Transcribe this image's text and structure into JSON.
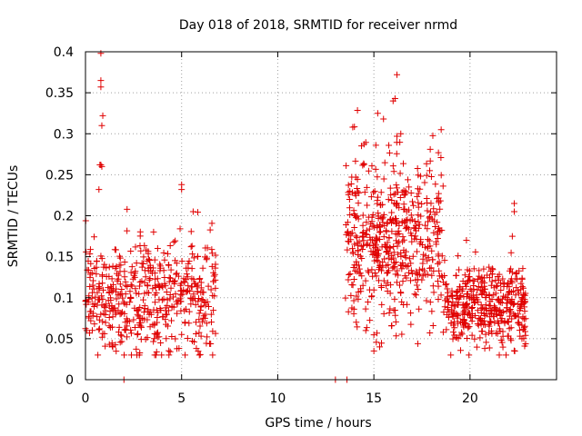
{
  "chart_data": {
    "type": "scatter",
    "title": "Day 018 of 2018, SRMTID for receiver nrmd",
    "xlabel": "GPS time / hours",
    "ylabel": "SRMTID / TECUs",
    "xlim": [
      0,
      24.5
    ],
    "ylim": [
      0,
      0.4
    ],
    "xticks": [
      0,
      5,
      10,
      15,
      20
    ],
    "yticks": [
      0,
      0.05,
      0.1,
      0.15,
      0.2,
      0.25,
      0.3,
      0.35,
      0.4
    ],
    "xtick_labels": [
      "0",
      "5",
      "10",
      "15",
      "20"
    ],
    "ytick_labels": [
      "0",
      "0.05",
      "0.1",
      "0.15",
      "0.2",
      "0.25",
      "0.3",
      "0.35",
      "0.4"
    ],
    "grid": true,
    "marker": "+",
    "color": "#e00000",
    "series": [
      {
        "name": "SRMTID",
        "clusters": [
          {
            "x_range": [
              0.0,
              6.8
            ],
            "y_mean": 0.1,
            "y_spread": 0.035,
            "count": 520
          },
          {
            "x_range": [
              13.5,
              18.6
            ],
            "y_mean": 0.17,
            "y_spread": 0.05,
            "count": 520
          },
          {
            "x_range": [
              18.6,
              22.9
            ],
            "y_mean": 0.09,
            "y_spread": 0.025,
            "count": 420
          }
        ],
        "points": [
          {
            "x": 0.8,
            "y": 0.398
          },
          {
            "x": 0.8,
            "y": 0.365
          },
          {
            "x": 0.8,
            "y": 0.357
          },
          {
            "x": 0.9,
            "y": 0.322
          },
          {
            "x": 0.85,
            "y": 0.31
          },
          {
            "x": 0.75,
            "y": 0.262
          },
          {
            "x": 0.8,
            "y": 0.262
          },
          {
            "x": 0.85,
            "y": 0.26
          },
          {
            "x": 0.7,
            "y": 0.232
          },
          {
            "x": 5.0,
            "y": 0.238
          },
          {
            "x": 5.0,
            "y": 0.232
          },
          {
            "x": 5.6,
            "y": 0.205
          },
          {
            "x": 16.2,
            "y": 0.372
          },
          {
            "x": 16.1,
            "y": 0.343
          },
          {
            "x": 16.0,
            "y": 0.34
          },
          {
            "x": 15.5,
            "y": 0.318
          },
          {
            "x": 15.2,
            "y": 0.325
          },
          {
            "x": 13.9,
            "y": 0.308
          },
          {
            "x": 16.4,
            "y": 0.3
          },
          {
            "x": 16.2,
            "y": 0.297
          },
          {
            "x": 18.5,
            "y": 0.305
          },
          {
            "x": 22.3,
            "y": 0.215
          },
          {
            "x": 22.3,
            "y": 0.205
          },
          {
            "x": 22.2,
            "y": 0.175
          },
          {
            "x": 15.0,
            "y": 0.035
          },
          {
            "x": 15.3,
            "y": 0.04
          },
          {
            "x": 3.6,
            "y": 0.03
          },
          {
            "x": 3.7,
            "y": 0.034
          },
          {
            "x": 2.0,
            "y": 0.0
          },
          {
            "x": 13.0,
            "y": 0.0
          },
          {
            "x": 13.6,
            "y": 0.0
          },
          {
            "x": 22.7,
            "y": 0.05
          },
          {
            "x": 22.6,
            "y": 0.053
          }
        ]
      }
    ]
  }
}
